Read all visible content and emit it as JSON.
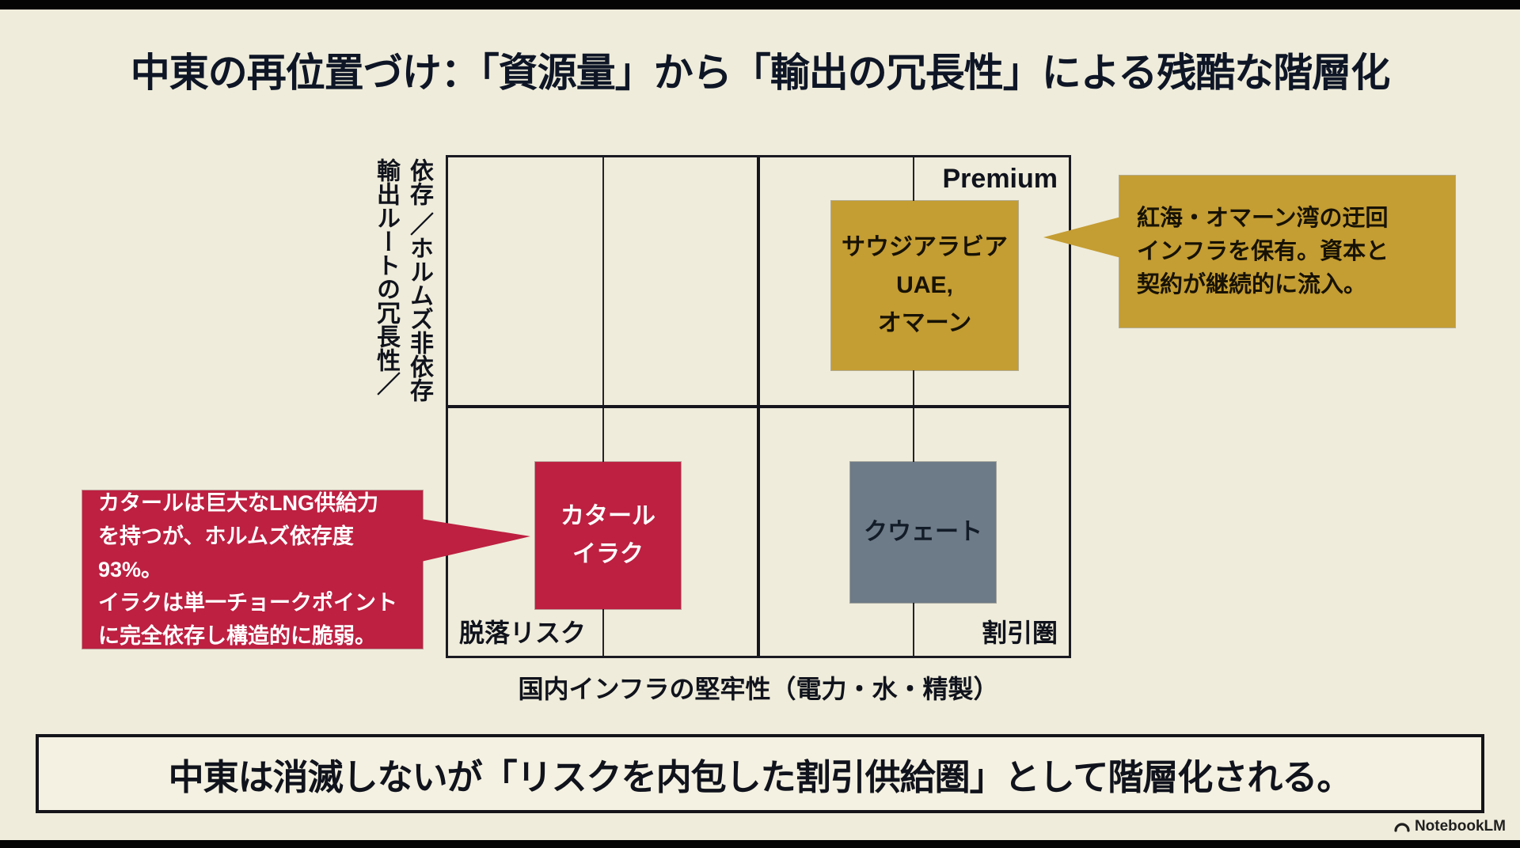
{
  "title": "中東の再位置づけ：「資源量」から「輸出の冗長性」による残酷な階層化",
  "matrix": {
    "x_axis_label": "国内インフラの堅牢性（電力・水・精製）",
    "y_axis": {
      "line1": "輸出ルートの冗長性／",
      "line2": "依存 ／ホルムズ非依存"
    },
    "quadrants": {
      "premium_label": "Premium",
      "dropout_label": "脱落リスク",
      "discount_label": "割引圏"
    },
    "boxes": {
      "premium": {
        "lines": [
          "サウジアラビア",
          "UAE,",
          "オマーン"
        ]
      },
      "dropout": {
        "lines": [
          "カタール",
          "イラク"
        ]
      },
      "discount": {
        "lines": [
          "クウェート"
        ]
      }
    }
  },
  "callouts": {
    "premium_note": {
      "lines": [
        "紅海・オマーン湾の迂回",
        "インフラを保有。資本と",
        "契約が継続的に流入。"
      ]
    },
    "risk_note": {
      "lines": [
        "カタールは巨大なLNG供給力",
        "を持つが、ホルムズ依存度93%。",
        "イラクは単一チョークポイント",
        "に完全依存し構造的に脆弱。"
      ]
    }
  },
  "footer_banner": "中東は消滅しないが「リスクを内包した割引供給圏」として階層化される。",
  "brand": "NotebookLM",
  "colors": {
    "background": "#efecdb",
    "gold": "#c49d33",
    "crimson": "#bd2041",
    "slate": "#6d7a87",
    "ink": "#12141c"
  }
}
